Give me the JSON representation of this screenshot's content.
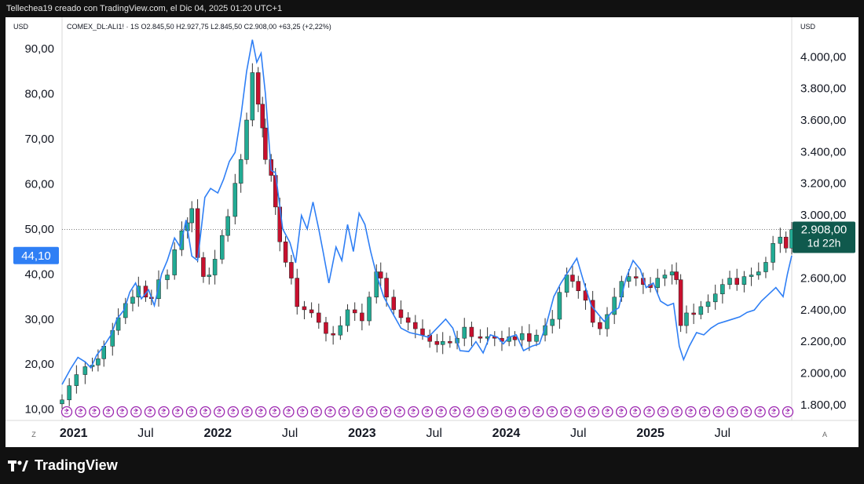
{
  "header": {
    "credit": "Tellechea19 creado con TradingView.com, el Dic 04, 2025 01:20 UTC+1"
  },
  "legend": {
    "text": "COMEX_DL:ALI1! · 1S  O2.845,50  H2.927,75  L2.845,50  C2.908,00  +63,25 (+2,22%)"
  },
  "footer": {
    "brand": "TradingView"
  },
  "colors": {
    "up": "#22ab94",
    "down": "#c8102e",
    "line": "#2f7ff5",
    "price_box": "#10594d",
    "left_box": "#2f7ff5",
    "event_circle": "#9c27b0"
  },
  "chart_data": {
    "type": "line",
    "left_axis": {
      "unit": "USD",
      "ylim": [
        7.5,
        97.0
      ],
      "ticks": [
        "10,00",
        "20,00",
        "30,00",
        "40,00",
        "50,00",
        "60,00",
        "70,00",
        "80,00",
        "90,00"
      ],
      "tick_values": [
        10,
        20,
        30,
        40,
        50,
        60,
        70,
        80,
        90
      ],
      "current_label": "44,10",
      "current_value": 44.1
    },
    "right_axis": {
      "unit": "USD",
      "ylim": [
        1700,
        4250
      ],
      "ticks": [
        "1.800,00",
        "2.000,00",
        "2.200,00",
        "2.400,00",
        "2.600,00",
        "2.800,00",
        "3.000,00",
        "3.200,00",
        "3.400,00",
        "3.600,00",
        "3.800,00",
        "4.000,00"
      ],
      "tick_values": [
        1800,
        2000,
        2200,
        2400,
        2600,
        2800,
        3000,
        3200,
        3400,
        3600,
        3800,
        4000
      ],
      "current_price_label": "2.908,00",
      "current_price": 2908,
      "countdown": "1d 22h"
    },
    "x_axis": {
      "range": [
        2020.92,
        2025.98
      ],
      "labels": [
        {
          "t": 2021.0,
          "text": "2021",
          "bold": true
        },
        {
          "t": 2021.5,
          "text": "Jul",
          "bold": false
        },
        {
          "t": 2022.0,
          "text": "2022",
          "bold": true
        },
        {
          "t": 2022.5,
          "text": "Jul",
          "bold": false
        },
        {
          "t": 2023.0,
          "text": "2023",
          "bold": true
        },
        {
          "t": 2023.5,
          "text": "Jul",
          "bold": false
        },
        {
          "t": 2024.0,
          "text": "2024",
          "bold": true
        },
        {
          "t": 2024.5,
          "text": "Jul",
          "bold": false
        },
        {
          "t": 2025.0,
          "text": "2025",
          "bold": true
        },
        {
          "t": 2025.5,
          "text": "Jul",
          "bold": false
        }
      ],
      "z_label": "Z",
      "a_label": "A"
    },
    "series": [
      {
        "axis": "right",
        "style": "candlestick",
        "points": [
          [
            2020.92,
            1830
          ],
          [
            2020.97,
            1920
          ],
          [
            2021.02,
            1990
          ],
          [
            2021.08,
            2040
          ],
          [
            2021.13,
            2050
          ],
          [
            2021.17,
            2090
          ],
          [
            2021.21,
            2170
          ],
          [
            2021.27,
            2270
          ],
          [
            2021.31,
            2350
          ],
          [
            2021.36,
            2440
          ],
          [
            2021.41,
            2480
          ],
          [
            2021.45,
            2550
          ],
          [
            2021.5,
            2480
          ],
          [
            2021.54,
            2470
          ],
          [
            2021.59,
            2590
          ],
          [
            2021.65,
            2620
          ],
          [
            2021.7,
            2780
          ],
          [
            2021.75,
            2900
          ],
          [
            2021.79,
            2950
          ],
          [
            2021.82,
            3040
          ],
          [
            2021.86,
            2730
          ],
          [
            2021.9,
            2610
          ],
          [
            2021.94,
            2620
          ],
          [
            2021.98,
            2720
          ],
          [
            2022.03,
            2870
          ],
          [
            2022.07,
            2990
          ],
          [
            2022.12,
            3200
          ],
          [
            2022.16,
            3350
          ],
          [
            2022.2,
            3600
          ],
          [
            2022.24,
            3900
          ],
          [
            2022.28,
            3700
          ],
          [
            2022.31,
            3550
          ],
          [
            2022.33,
            3350
          ],
          [
            2022.37,
            3250
          ],
          [
            2022.4,
            3050
          ],
          [
            2022.43,
            2830
          ],
          [
            2022.47,
            2700
          ],
          [
            2022.51,
            2600
          ],
          [
            2022.55,
            2420
          ],
          [
            2022.6,
            2400
          ],
          [
            2022.65,
            2380
          ],
          [
            2022.7,
            2320
          ],
          [
            2022.75,
            2250
          ],
          [
            2022.8,
            2240
          ],
          [
            2022.85,
            2300
          ],
          [
            2022.9,
            2400
          ],
          [
            2022.95,
            2380
          ],
          [
            2023.0,
            2330
          ],
          [
            2023.05,
            2480
          ],
          [
            2023.1,
            2640
          ],
          [
            2023.13,
            2600
          ],
          [
            2023.17,
            2480
          ],
          [
            2023.22,
            2400
          ],
          [
            2023.27,
            2350
          ],
          [
            2023.32,
            2320
          ],
          [
            2023.37,
            2280
          ],
          [
            2023.42,
            2240
          ],
          [
            2023.47,
            2200
          ],
          [
            2023.52,
            2180
          ],
          [
            2023.56,
            2200
          ],
          [
            2023.61,
            2190
          ],
          [
            2023.66,
            2220
          ],
          [
            2023.71,
            2290
          ],
          [
            2023.76,
            2230
          ],
          [
            2023.82,
            2220
          ],
          [
            2023.87,
            2230
          ],
          [
            2023.92,
            2220
          ],
          [
            2023.97,
            2200
          ],
          [
            2024.02,
            2230
          ],
          [
            2024.06,
            2210
          ],
          [
            2024.11,
            2250
          ],
          [
            2024.16,
            2200
          ],
          [
            2024.21,
            2240
          ],
          [
            2024.27,
            2300
          ],
          [
            2024.32,
            2340
          ],
          [
            2024.37,
            2510
          ],
          [
            2024.42,
            2620
          ],
          [
            2024.46,
            2580
          ],
          [
            2024.5,
            2520
          ],
          [
            2024.55,
            2460
          ],
          [
            2024.6,
            2320
          ],
          [
            2024.65,
            2280
          ],
          [
            2024.7,
            2370
          ],
          [
            2024.75,
            2480
          ],
          [
            2024.8,
            2580
          ],
          [
            2024.85,
            2610
          ],
          [
            2024.9,
            2600
          ],
          [
            2024.95,
            2560
          ],
          [
            2025.0,
            2540
          ],
          [
            2025.05,
            2600
          ],
          [
            2025.1,
            2620
          ],
          [
            2025.15,
            2640
          ],
          [
            2025.18,
            2590
          ],
          [
            2025.21,
            2300
          ],
          [
            2025.25,
            2380
          ],
          [
            2025.3,
            2370
          ],
          [
            2025.35,
            2420
          ],
          [
            2025.4,
            2450
          ],
          [
            2025.45,
            2500
          ],
          [
            2025.5,
            2560
          ],
          [
            2025.55,
            2600
          ],
          [
            2025.6,
            2560
          ],
          [
            2025.65,
            2610
          ],
          [
            2025.7,
            2620
          ],
          [
            2025.75,
            2640
          ],
          [
            2025.8,
            2700
          ],
          [
            2025.85,
            2820
          ],
          [
            2025.9,
            2860
          ],
          [
            2025.94,
            2790
          ],
          [
            2025.98,
            2908
          ]
        ]
      },
      {
        "axis": "left",
        "style": "line",
        "points": [
          [
            2020.92,
            15.5
          ],
          [
            2020.98,
            19.0
          ],
          [
            2021.03,
            21.5
          ],
          [
            2021.08,
            20.5
          ],
          [
            2021.12,
            19.2
          ],
          [
            2021.16,
            22.0
          ],
          [
            2021.21,
            24.0
          ],
          [
            2021.26,
            26.5
          ],
          [
            2021.3,
            30.0
          ],
          [
            2021.35,
            32.0
          ],
          [
            2021.39,
            36.0
          ],
          [
            2021.43,
            38.0
          ],
          [
            2021.47,
            34.5
          ],
          [
            2021.52,
            36.5
          ],
          [
            2021.56,
            33.0
          ],
          [
            2021.61,
            40.0
          ],
          [
            2021.65,
            43.0
          ],
          [
            2021.7,
            48.0
          ],
          [
            2021.74,
            46.0
          ],
          [
            2021.78,
            52.0
          ],
          [
            2021.82,
            44.0
          ],
          [
            2021.86,
            43.0
          ],
          [
            2021.91,
            57.0
          ],
          [
            2021.95,
            59.0
          ],
          [
            2022.0,
            58.0
          ],
          [
            2022.04,
            61.0
          ],
          [
            2022.08,
            65.0
          ],
          [
            2022.12,
            67.0
          ],
          [
            2022.16,
            75.0
          ],
          [
            2022.2,
            85.0
          ],
          [
            2022.24,
            92.0
          ],
          [
            2022.27,
            87.0
          ],
          [
            2022.3,
            89.0
          ],
          [
            2022.33,
            80.0
          ],
          [
            2022.37,
            63.0
          ],
          [
            2022.4,
            62.5
          ],
          [
            2022.45,
            50.0
          ],
          [
            2022.5,
            47.0
          ],
          [
            2022.54,
            42.5
          ],
          [
            2022.58,
            53.0
          ],
          [
            2022.62,
            50.0
          ],
          [
            2022.66,
            56.0
          ],
          [
            2022.7,
            50.0
          ],
          [
            2022.73,
            45.0
          ],
          [
            2022.77,
            38.0
          ],
          [
            2022.82,
            46.0
          ],
          [
            2022.86,
            43.0
          ],
          [
            2022.9,
            51.0
          ],
          [
            2022.94,
            45.0
          ],
          [
            2022.98,
            53.5
          ],
          [
            2023.02,
            51.0
          ],
          [
            2023.06,
            45.0
          ],
          [
            2023.1,
            40.0
          ],
          [
            2023.15,
            35.0
          ],
          [
            2023.2,
            32.0
          ],
          [
            2023.27,
            28.0
          ],
          [
            2023.33,
            27.0
          ],
          [
            2023.4,
            26.5
          ],
          [
            2023.46,
            26.0
          ],
          [
            2023.52,
            28.0
          ],
          [
            2023.58,
            30.0
          ],
          [
            2023.63,
            28.0
          ],
          [
            2023.68,
            23.0
          ],
          [
            2023.74,
            22.8
          ],
          [
            2023.79,
            25.0
          ],
          [
            2023.84,
            22.5
          ],
          [
            2023.89,
            26.5
          ],
          [
            2023.94,
            26.0
          ],
          [
            2023.98,
            24.5
          ],
          [
            2024.02,
            26.0
          ],
          [
            2024.07,
            26.5
          ],
          [
            2024.12,
            23.0
          ],
          [
            2024.18,
            24.0
          ],
          [
            2024.23,
            24.5
          ],
          [
            2024.28,
            29.0
          ],
          [
            2024.33,
            35.0
          ],
          [
            2024.38,
            38.0
          ],
          [
            2024.44,
            41.0
          ],
          [
            2024.49,
            43.5
          ],
          [
            2024.54,
            38.0
          ],
          [
            2024.59,
            33.0
          ],
          [
            2024.64,
            31.0
          ],
          [
            2024.68,
            29.5
          ],
          [
            2024.73,
            31.5
          ],
          [
            2024.78,
            32.5
          ],
          [
            2024.83,
            39.0
          ],
          [
            2024.88,
            43.0
          ],
          [
            2024.93,
            41.0
          ],
          [
            2024.97,
            37.0
          ],
          [
            2025.02,
            38.0
          ],
          [
            2025.07,
            34.0
          ],
          [
            2025.12,
            33.0
          ],
          [
            2025.16,
            33.5
          ],
          [
            2025.2,
            24.0
          ],
          [
            2025.23,
            21.0
          ],
          [
            2025.27,
            24.0
          ],
          [
            2025.32,
            27.0
          ],
          [
            2025.37,
            26.5
          ],
          [
            2025.42,
            28.0
          ],
          [
            2025.47,
            29.0
          ],
          [
            2025.52,
            29.5
          ],
          [
            2025.57,
            30.0
          ],
          [
            2025.62,
            30.5
          ],
          [
            2025.67,
            31.5
          ],
          [
            2025.72,
            32.0
          ],
          [
            2025.77,
            34.0
          ],
          [
            2025.82,
            35.5
          ],
          [
            2025.87,
            37.0
          ],
          [
            2025.92,
            35.0
          ],
          [
            2025.95,
            40.0
          ],
          [
            2025.98,
            44.1
          ]
        ]
      }
    ],
    "event_markers_count": 53
  }
}
